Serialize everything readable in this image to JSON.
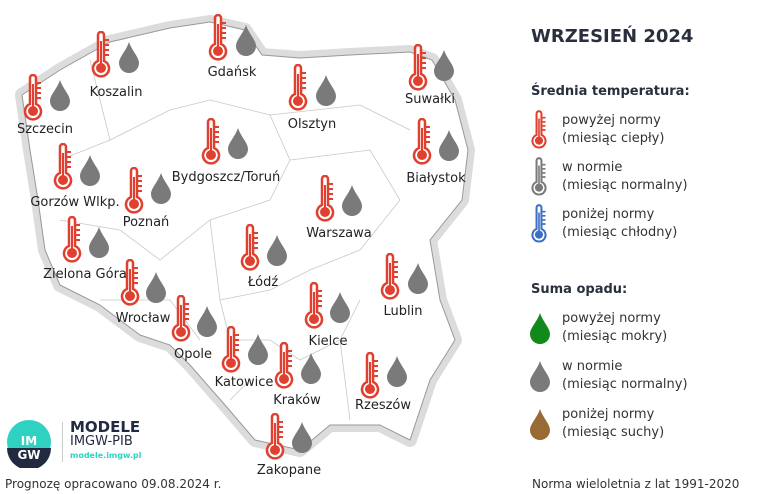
{
  "title": "WRZESIEŃ 2024",
  "colors": {
    "above": "#e0402f",
    "normal": "#7a7a7a",
    "below": "#3b6fc4",
    "wet": "#118a1b",
    "dry": "#9a6a35",
    "map_fill": "#ffffff",
    "halo": "#d8d8d8"
  },
  "legend": {
    "temp_heading": "Średnia temperatura:",
    "temp_items": [
      {
        "icon": "thermometer-red",
        "line1": "powyżej normy",
        "line2": "(miesiąc ciepły)"
      },
      {
        "icon": "thermometer-gray",
        "line1": "w normie",
        "line2": "(miesiąc normalny)"
      },
      {
        "icon": "thermometer-blue",
        "line1": "poniżej normy",
        "line2": "(miesiąc chłodny)"
      }
    ],
    "precip_heading": "Suma opadu:",
    "precip_items": [
      {
        "icon": "drop-green",
        "line1": "powyżej normy",
        "line2": "(miesiąc mokry)"
      },
      {
        "icon": "drop-gray",
        "line1": "w normie",
        "line2": "(miesiąc normalny)"
      },
      {
        "icon": "drop-brown",
        "line1": "poniżej normy",
        "line2": "(miesiąc suchy)"
      }
    ]
  },
  "cities": [
    {
      "name": "Szczecin",
      "temp": "above",
      "precip": "normal"
    },
    {
      "name": "Koszalin",
      "temp": "above",
      "precip": "normal"
    },
    {
      "name": "Gdańsk",
      "temp": "above",
      "precip": "normal"
    },
    {
      "name": "Suwałki",
      "temp": "above",
      "precip": "normal"
    },
    {
      "name": "Olsztyn",
      "temp": "above",
      "precip": "normal"
    },
    {
      "name": "Bydgoszcz/Toruń",
      "temp": "above",
      "precip": "normal"
    },
    {
      "name": "Białystok",
      "temp": "above",
      "precip": "normal"
    },
    {
      "name": "Gorzów Wlkp.",
      "temp": "above",
      "precip": "normal"
    },
    {
      "name": "Poznań",
      "temp": "above",
      "precip": "normal"
    },
    {
      "name": "Warszawa",
      "temp": "above",
      "precip": "normal"
    },
    {
      "name": "Zielona Góra",
      "temp": "above",
      "precip": "normal"
    },
    {
      "name": "Łódź",
      "temp": "above",
      "precip": "normal"
    },
    {
      "name": "Lublin",
      "temp": "above",
      "precip": "normal"
    },
    {
      "name": "Wrocław",
      "temp": "above",
      "precip": "normal"
    },
    {
      "name": "Opole",
      "temp": "above",
      "precip": "normal"
    },
    {
      "name": "Kielce",
      "temp": "above",
      "precip": "normal"
    },
    {
      "name": "Katowice",
      "temp": "above",
      "precip": "normal"
    },
    {
      "name": "Kraków",
      "temp": "above",
      "precip": "normal"
    },
    {
      "name": "Rzeszów",
      "temp": "above",
      "precip": "normal"
    },
    {
      "name": "Zakopane",
      "temp": "above",
      "precip": "normal"
    }
  ],
  "logo": {
    "line1": "MODELE",
    "line2": "IMGW-PIB",
    "url": "modele.imgw.pl",
    "badge": "IMGW"
  },
  "footer": {
    "forecast_date": "Prognozę opracowano 09.08.2024 r.",
    "norm": "Norma wieloletnia z lat 1991-2020"
  }
}
